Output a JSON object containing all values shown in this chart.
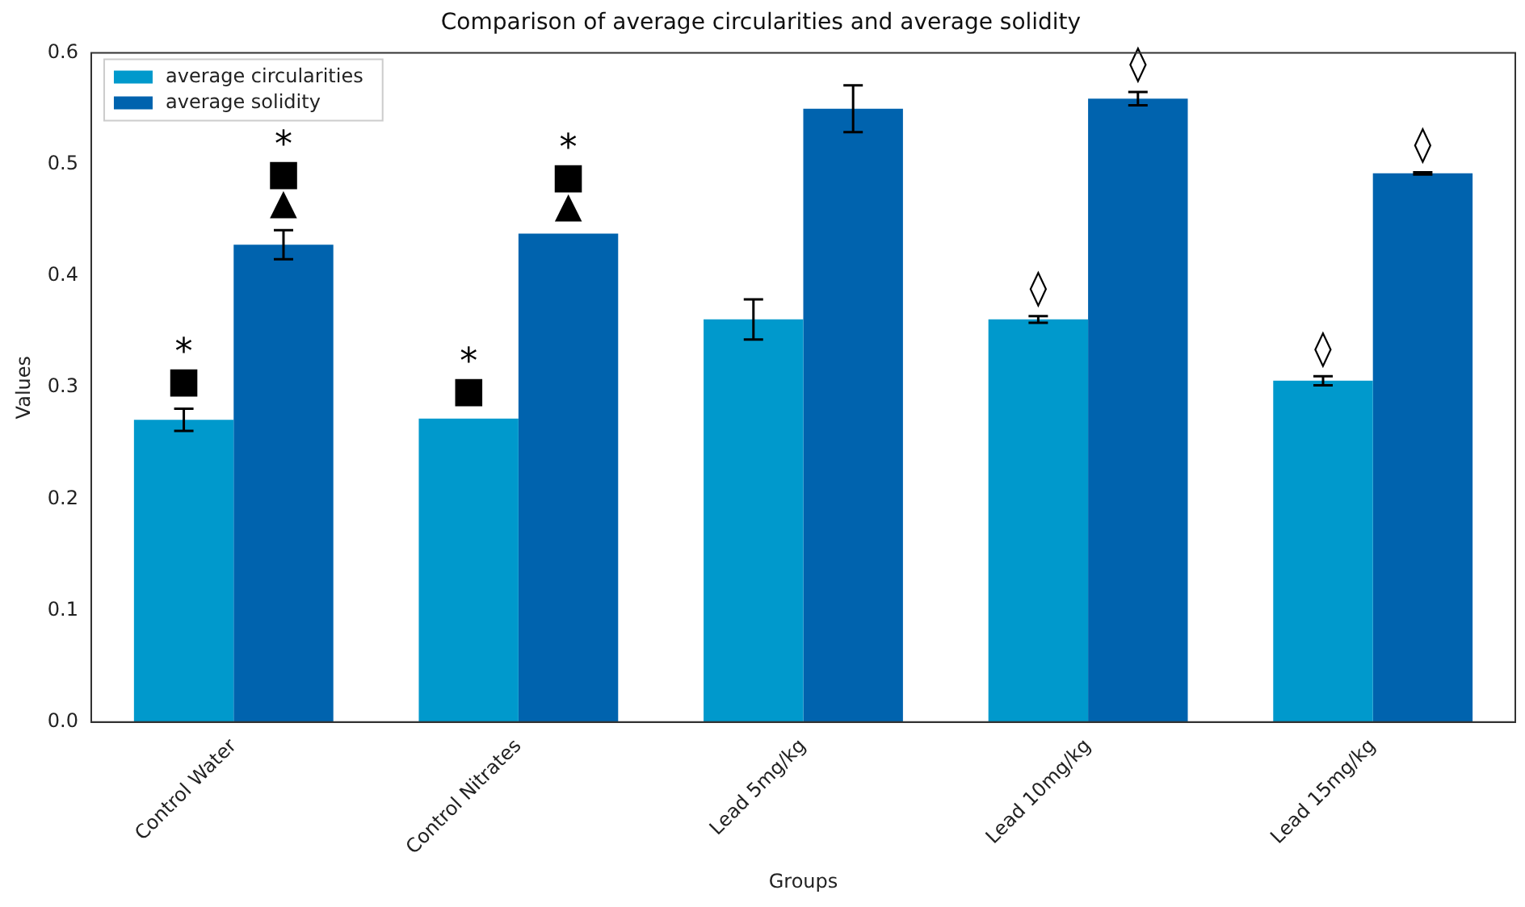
{
  "chart_data": {
    "type": "bar",
    "title": "Comparison of average circularities and average solidity",
    "xlabel": "Groups",
    "ylabel": "Values",
    "categories": [
      "Control Water",
      "Control Nitrates",
      "Lead 5mg/kg",
      "Lead 10mg/kg",
      "Lead 15mg/kg"
    ],
    "series": [
      {
        "name": "average circularities",
        "color": "#0099cc",
        "values": [
          0.271,
          0.272,
          0.361,
          0.361,
          0.306
        ],
        "errors": [
          0.01,
          null,
          0.018,
          0.003,
          0.004
        ]
      },
      {
        "name": "average solidity",
        "color": "#0063ae",
        "values": [
          0.428,
          0.438,
          0.55,
          0.559,
          0.492
        ],
        "errors": [
          0.013,
          null,
          0.021,
          0.006,
          0.001
        ]
      }
    ],
    "ylim": [
      0,
      0.6
    ],
    "yticks": [
      {
        "value": 0,
        "label": "0.0"
      },
      0.1,
      0.2,
      0.3,
      0.4,
      0.5,
      0.6
    ],
    "grid": false,
    "legend": "top left",
    "annotations": [
      {
        "text": "■",
        "x": "Control Water",
        "y": 0.271
      },
      {
        "text": "*",
        "x": "Control Water",
        "y": 0.271
      },
      {
        "text": "▲",
        "x": "Control Water",
        "y": 0.428
      },
      {
        "text": "■",
        "x": "Control Water",
        "y": 0.428
      },
      {
        "text": "*",
        "x": "Control Water",
        "y": 0.428
      },
      {
        "text": "■",
        "x": "Control Nitrates",
        "y": 0.272
      },
      {
        "text": "*",
        "x": "Control Nitrates",
        "y": 0.272
      },
      {
        "text": "▲",
        "x": "Control Nitrates",
        "y": 0.438
      },
      {
        "text": "■",
        "x": "Control Nitrates",
        "y": 0.438
      },
      {
        "text": "*",
        "x": "Control Nitrates",
        "y": 0.438
      },
      {
        "text": "◊",
        "x": "Lead 10mg/kg",
        "y": 0.361
      },
      {
        "text": "◊",
        "x": "Lead 10mg/kg",
        "y": 0.559
      },
      {
        "text": "◊",
        "x": "Lead 15mg/kg",
        "y": 0.306
      },
      {
        "text": "◊",
        "x": "Lead 15mg/kg",
        "y": 0.492
      }
    ]
  }
}
